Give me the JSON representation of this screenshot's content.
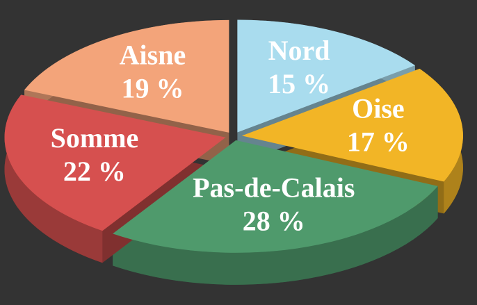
{
  "chart_data": {
    "type": "pie",
    "categories": [
      "Nord",
      "Oise",
      "Pas-de-Calais",
      "Somme",
      "Aisne"
    ],
    "values": [
      15,
      17,
      28,
      22,
      19
    ],
    "value_labels": [
      "15 %",
      "17 %",
      "28 %",
      "22 %",
      "19 %"
    ],
    "colors": [
      "#a9dcee",
      "#f2b526",
      "#4f9a6c",
      "#d6504f",
      "#f3a47a"
    ],
    "three_d": true
  }
}
